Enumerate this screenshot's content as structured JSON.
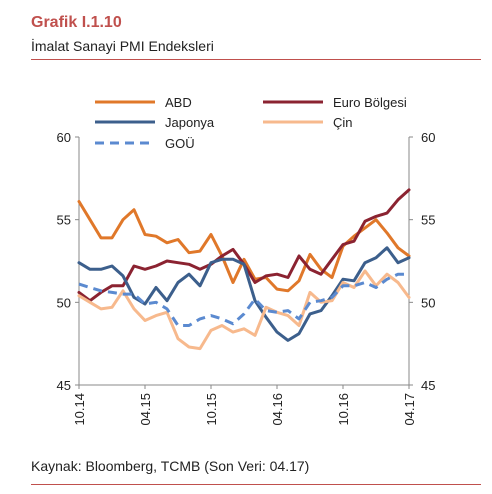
{
  "header": {
    "title": "Grafik I.1.10",
    "subtitle": "İmalat Sanayi PMI Endeksleri"
  },
  "footer": {
    "source": "Kaynak: Bloomberg, TCMB (Son Veri: 04.17)"
  },
  "colors": {
    "accent": "#c0504d",
    "abd": "#e0782a",
    "euro": "#8b2331",
    "japonya": "#3c5f8c",
    "cin": "#f7b98d",
    "gou": "#5b8ad0"
  },
  "chart_data": {
    "type": "line",
    "title": "",
    "xlabel": "",
    "ylabel": "",
    "ylim": [
      45,
      60
    ],
    "yticks": [
      "45",
      "50",
      "55",
      "60"
    ],
    "xticks": [
      "10.14",
      "04.15",
      "10.15",
      "04.16",
      "10.16",
      "04.17"
    ],
    "x": [
      "10.14",
      "11.14",
      "12.14",
      "01.15",
      "02.15",
      "03.15",
      "04.15",
      "05.15",
      "06.15",
      "07.15",
      "08.15",
      "09.15",
      "10.15",
      "11.15",
      "12.15",
      "01.16",
      "02.16",
      "03.16",
      "04.16",
      "05.16",
      "06.16",
      "07.16",
      "08.16",
      "09.16",
      "10.16",
      "11.16",
      "12.16",
      "01.17",
      "02.17",
      "03.17",
      "04.17"
    ],
    "grid": false,
    "legend_position": "top",
    "series": [
      {
        "name": "ABD",
        "color_key": "abd",
        "dash": false,
        "values": [
          56.1,
          55.0,
          53.9,
          53.9,
          55.0,
          55.6,
          54.1,
          54.0,
          53.6,
          53.8,
          53.0,
          53.1,
          54.1,
          52.8,
          51.2,
          52.6,
          51.4,
          51.5,
          50.8,
          50.7,
          51.3,
          52.9,
          52.0,
          51.5,
          53.4,
          54.0,
          54.5,
          55.0,
          54.2,
          53.3,
          52.8
        ]
      },
      {
        "name": "Euro Bölgesi",
        "color_key": "euro",
        "dash": false,
        "values": [
          50.6,
          50.1,
          50.6,
          51.0,
          51.0,
          52.2,
          52.0,
          52.2,
          52.5,
          52.4,
          52.3,
          52.0,
          52.3,
          52.8,
          53.2,
          52.3,
          51.2,
          51.6,
          51.7,
          51.5,
          52.8,
          52.0,
          51.7,
          52.6,
          53.5,
          53.7,
          54.9,
          55.2,
          55.4,
          56.2,
          56.8
        ]
      },
      {
        "name": "Japonya",
        "color_key": "japonya",
        "dash": false,
        "values": [
          52.4,
          52.0,
          52.0,
          52.2,
          51.6,
          50.3,
          49.9,
          50.9,
          50.1,
          51.2,
          51.7,
          51.0,
          52.4,
          52.6,
          52.6,
          52.3,
          50.1,
          49.1,
          48.2,
          47.7,
          48.1,
          49.3,
          49.5,
          50.4,
          51.4,
          51.3,
          52.4,
          52.7,
          53.3,
          52.4,
          52.7
        ]
      },
      {
        "name": "Çin",
        "color_key": "cin",
        "dash": false,
        "values": [
          50.4,
          50.0,
          49.6,
          49.7,
          50.7,
          49.6,
          48.9,
          49.2,
          49.4,
          47.8,
          47.3,
          47.2,
          48.3,
          48.6,
          48.2,
          48.4,
          48.0,
          49.7,
          49.4,
          49.2,
          48.6,
          50.6,
          50.0,
          50.1,
          51.2,
          50.9,
          51.9,
          51.0,
          51.7,
          51.2,
          50.3
        ]
      },
      {
        "name": "GOÜ",
        "color_key": "gou",
        "dash": true,
        "values": [
          51.1,
          50.9,
          50.7,
          50.6,
          50.5,
          50.5,
          49.9,
          50.0,
          49.6,
          48.6,
          48.6,
          49.0,
          49.2,
          49.0,
          48.7,
          49.3,
          50.2,
          49.5,
          49.4,
          49.5,
          49.0,
          50.0,
          50.1,
          50.3,
          51.0,
          51.0,
          51.2,
          50.9,
          51.4,
          51.7,
          51.7
        ]
      }
    ],
    "legend": [
      {
        "label": "ABD",
        "color_key": "abd",
        "dash": false
      },
      {
        "label": "Euro Bölgesi",
        "color_key": "euro",
        "dash": false
      },
      {
        "label": "Japonya",
        "color_key": "japonya",
        "dash": false
      },
      {
        "label": "Çin",
        "color_key": "cin",
        "dash": false
      },
      {
        "label": "GOÜ",
        "color_key": "gou",
        "dash": true
      }
    ]
  }
}
